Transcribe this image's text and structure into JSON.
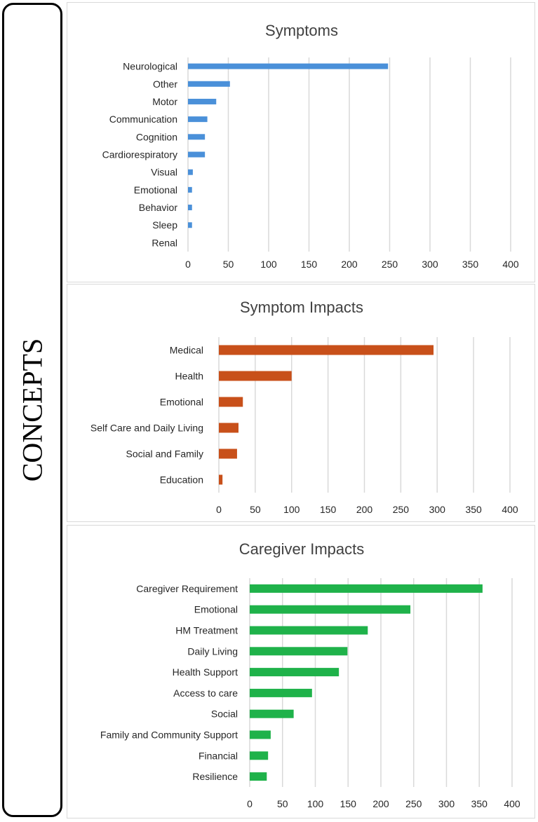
{
  "side_label": "CONCEPTS",
  "colors": {
    "symptoms": "#4a90d9",
    "symptom_impacts": "#c8501a",
    "caregiver_impacts": "#1fb24a"
  },
  "chart_data": [
    {
      "type": "bar",
      "orientation": "horizontal",
      "title": "Symptoms",
      "categories": [
        "Neurological",
        "Other",
        "Motor",
        "Communication",
        "Cognition",
        "Cardiorespiratory",
        "Visual",
        "Emotional",
        "Behavior",
        "Sleep",
        "Renal"
      ],
      "values": [
        248,
        52,
        35,
        24,
        21,
        21,
        6,
        5,
        5,
        5,
        0
      ],
      "xlim": [
        0,
        400
      ],
      "ticks": [
        "0",
        "50",
        "100",
        "150",
        "200",
        "250",
        "300",
        "350",
        "400"
      ],
      "grid": true
    },
    {
      "type": "bar",
      "orientation": "horizontal",
      "title": "Symptom Impacts",
      "categories": [
        "Medical",
        "Health",
        "Emotional",
        "Self Care and Daily Living",
        "Social and Family",
        "Education"
      ],
      "values": [
        295,
        100,
        33,
        27,
        25,
        5
      ],
      "xlim": [
        0,
        400
      ],
      "ticks": [
        "0",
        "50",
        "100",
        "150",
        "200",
        "250",
        "300",
        "350",
        "400"
      ],
      "grid": true
    },
    {
      "type": "bar",
      "orientation": "horizontal",
      "title": "Caregiver Impacts",
      "categories": [
        "Caregiver Requirement",
        "Emotional",
        "HM Treatment",
        "Daily Living",
        "Health Support",
        "Access to care",
        "Social",
        "Family and Community Support",
        "Financial",
        "Resilience"
      ],
      "values": [
        355,
        245,
        180,
        149,
        136,
        95,
        67,
        32,
        28,
        26
      ],
      "xlim": [
        0,
        400
      ],
      "ticks": [
        "0",
        "50",
        "100",
        "150",
        "200",
        "250",
        "300",
        "350",
        "400"
      ],
      "grid": true
    }
  ]
}
